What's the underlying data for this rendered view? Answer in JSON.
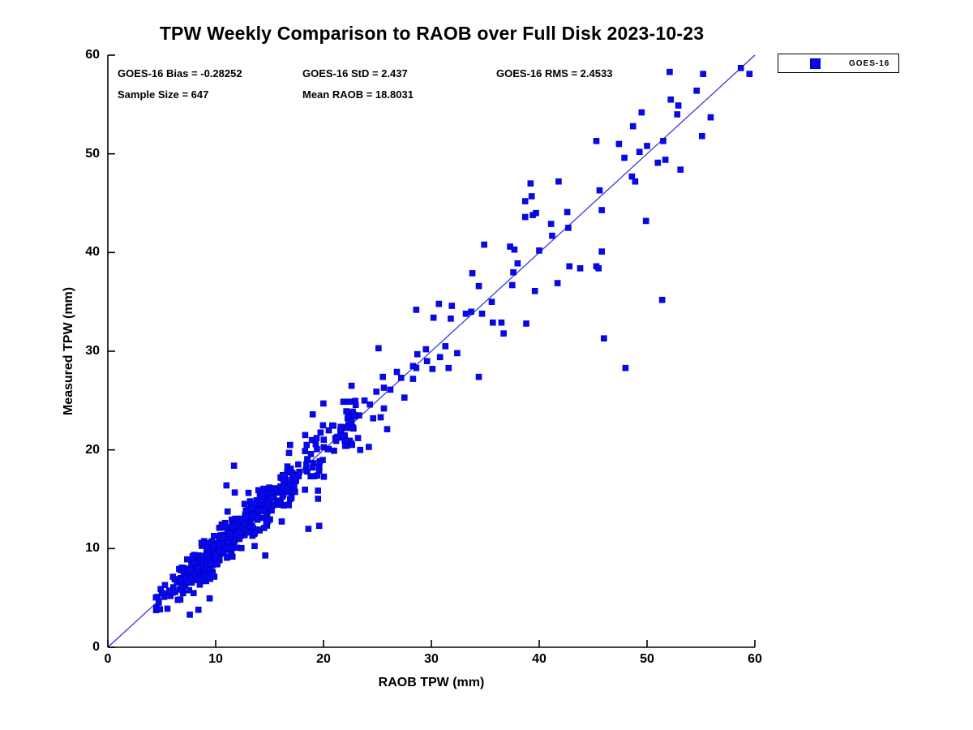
{
  "header": {
    "title": "TPW Weekly Comparison to RAOB over Full Disk 2023-10-23"
  },
  "annotations": {
    "bias_label": "GOES-16 Bias = -0.28252",
    "std_label": "GOES-16 StD = 2.437",
    "rms_label": "GOES-16 RMS = 2.4533",
    "sample_label": "Sample Size = 647",
    "mean_label": "Mean RAOB = 18.8031"
  },
  "legend": {
    "label": "GOES-16"
  },
  "colors": {
    "marker": "#0808f0",
    "marker_edge": "#0000b8",
    "identity_line": "#2a2ae0",
    "axis": "#000000",
    "background": "#ffffff"
  },
  "chart_data": {
    "type": "scatter",
    "title": "TPW Weekly Comparison to RAOB over Full Disk 2023-10-23",
    "xlabel": "RAOB TPW (mm)",
    "ylabel": "Measured TPW (mm)",
    "xlim": [
      0,
      60
    ],
    "ylim": [
      0,
      60
    ],
    "xticks": [
      0,
      10,
      20,
      30,
      40,
      50,
      60
    ],
    "yticks": [
      0,
      10,
      20,
      30,
      40,
      50,
      60
    ],
    "grid": false,
    "legend_position": "outside-top-right",
    "identity_line": {
      "from": [
        0,
        0
      ],
      "to": [
        60,
        60
      ]
    },
    "series": [
      {
        "name": "GOES-16",
        "marker": "square",
        "stats": {
          "bias": -0.28252,
          "std": 2.437,
          "rms": 2.4533,
          "sample_size": 647,
          "mean_raob": 18.8031
        },
        "points_explicit": [
          [
            52.1,
            58.3
          ],
          [
            55.2,
            58.1
          ],
          [
            58.7,
            58.7
          ],
          [
            59.5,
            58.1
          ],
          [
            54.6,
            56.4
          ],
          [
            52.2,
            55.5
          ],
          [
            52.9,
            54.9
          ],
          [
            52.8,
            54.0
          ],
          [
            55.9,
            53.7
          ],
          [
            49.5,
            54.2
          ],
          [
            48.7,
            52.8
          ],
          [
            55.1,
            51.8
          ],
          [
            45.3,
            51.3
          ],
          [
            47.4,
            51.0
          ],
          [
            47.9,
            49.6
          ],
          [
            51.5,
            51.3
          ],
          [
            51.7,
            49.4
          ],
          [
            49.3,
            50.2
          ],
          [
            50.0,
            50.8
          ],
          [
            51.0,
            49.1
          ],
          [
            53.1,
            48.4
          ],
          [
            48.6,
            47.7
          ],
          [
            48.9,
            47.2
          ],
          [
            41.8,
            47.2
          ],
          [
            39.2,
            47.0
          ],
          [
            39.3,
            45.7
          ],
          [
            38.7,
            45.2
          ],
          [
            39.7,
            44.0
          ],
          [
            41.1,
            42.9
          ],
          [
            42.6,
            44.1
          ],
          [
            42.7,
            42.5
          ],
          [
            45.8,
            44.3
          ],
          [
            45.6,
            46.3
          ],
          [
            41.2,
            41.7
          ],
          [
            40.0,
            40.2
          ],
          [
            45.8,
            40.1
          ],
          [
            45.3,
            38.6
          ],
          [
            42.8,
            38.6
          ],
          [
            49.9,
            43.2
          ],
          [
            38.7,
            43.6
          ],
          [
            39.4,
            43.8
          ],
          [
            34.9,
            40.8
          ],
          [
            37.3,
            40.6
          ],
          [
            37.7,
            40.3
          ],
          [
            38.0,
            38.9
          ],
          [
            33.8,
            37.9
          ],
          [
            37.6,
            38.0
          ],
          [
            41.7,
            36.9
          ],
          [
            51.4,
            35.2
          ],
          [
            46.0,
            31.3
          ],
          [
            48.0,
            28.3
          ],
          [
            43.8,
            38.4
          ],
          [
            45.5,
            38.4
          ],
          [
            39.6,
            36.1
          ],
          [
            34.4,
            36.6
          ],
          [
            37.5,
            36.7
          ],
          [
            35.6,
            35.0
          ],
          [
            34.7,
            33.8
          ],
          [
            35.7,
            32.9
          ],
          [
            36.5,
            32.9
          ],
          [
            36.7,
            31.8
          ],
          [
            38.8,
            32.8
          ],
          [
            33.2,
            33.8
          ],
          [
            33.7,
            34.0
          ],
          [
            34.4,
            27.4
          ],
          [
            30.7,
            34.8
          ],
          [
            31.9,
            34.6
          ],
          [
            28.6,
            34.2
          ],
          [
            30.2,
            33.4
          ],
          [
            31.8,
            33.3
          ],
          [
            25.1,
            30.3
          ],
          [
            28.7,
            29.7
          ],
          [
            29.5,
            30.2
          ],
          [
            31.3,
            30.5
          ],
          [
            32.4,
            29.8
          ],
          [
            30.8,
            29.4
          ],
          [
            28.3,
            28.5
          ],
          [
            29.6,
            29.0
          ],
          [
            30.1,
            28.2
          ],
          [
            31.6,
            28.3
          ],
          [
            28.6,
            28.3
          ],
          [
            28.3,
            27.2
          ],
          [
            27.2,
            27.3
          ],
          [
            26.2,
            26.1
          ],
          [
            25.6,
            26.3
          ],
          [
            24.3,
            24.6
          ],
          [
            23.3,
            23.5
          ],
          [
            24.6,
            23.2
          ],
          [
            22.6,
            26.5
          ],
          [
            26.8,
            27.9
          ],
          [
            25.5,
            27.4
          ],
          [
            24.9,
            25.9
          ],
          [
            27.5,
            25.3
          ],
          [
            25.6,
            24.2
          ],
          [
            25.3,
            23.3
          ],
          [
            23.8,
            25.0
          ],
          [
            22.3,
            23.7
          ],
          [
            22.7,
            22.3
          ],
          [
            21.6,
            21.8
          ],
          [
            23.2,
            21.2
          ],
          [
            21.1,
            21.2
          ],
          [
            22.0,
            20.5
          ],
          [
            23.4,
            20.0
          ],
          [
            18.3,
            21.5
          ],
          [
            16.9,
            20.5
          ],
          [
            24.2,
            20.3
          ],
          [
            25.9,
            22.1
          ],
          [
            19.0,
            23.6
          ],
          [
            18.6,
            12.0
          ],
          [
            19.6,
            12.3
          ],
          [
            14.6,
            9.3
          ],
          [
            7.6,
            3.3
          ],
          [
            8.4,
            3.8
          ],
          [
            11.7,
            18.4
          ],
          [
            11.0,
            16.4
          ],
          [
            4.6,
            5.1
          ],
          [
            5.0,
            5.5
          ],
          [
            5.3,
            6.3
          ],
          [
            5.8,
            5.2
          ],
          [
            6.2,
            6.9
          ],
          [
            4.9,
            5.9
          ],
          [
            7.2,
            6.5
          ],
          [
            6.8,
            7.8
          ]
        ],
        "points_generated": {
          "count": 524,
          "seed": 20231023,
          "x_log_mean": 2.5,
          "x_log_sigma": 0.34,
          "x_min": 4.2,
          "x_max": 23.0,
          "bias": -0.28,
          "noise_base": 0.42,
          "noise_slope": 0.05,
          "outlier_fraction": 0.04,
          "outlier_scale": 2.8,
          "y_min": 0.6
        }
      }
    ]
  }
}
